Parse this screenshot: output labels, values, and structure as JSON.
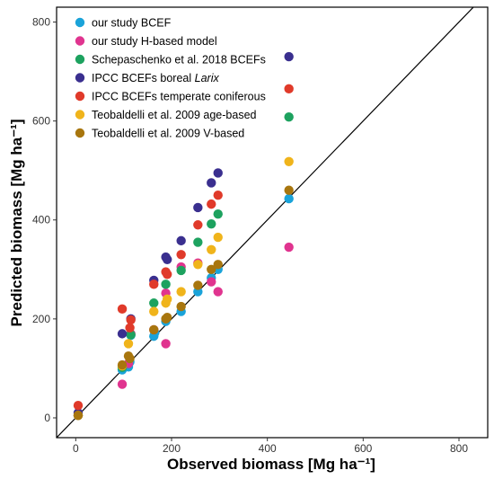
{
  "chart_data": {
    "type": "scatter",
    "xlabel": "Observed biomass [Mg ha⁻¹]",
    "ylabel": "Predicted biomass [Mg ha⁻¹]",
    "xlim": [
      -40,
      860
    ],
    "ylim": [
      -40,
      830
    ],
    "x_ticks": [
      0,
      200,
      400,
      600,
      800
    ],
    "y_ticks": [
      0,
      200,
      400,
      600,
      800
    ],
    "grid": false,
    "reference_line": "1:1",
    "legend_position": "top-left",
    "series": [
      {
        "name": "our study BCEF",
        "color": "#1AA3D9",
        "points": [
          [
            5,
            5
          ],
          [
            97,
            97
          ],
          [
            110,
            103
          ],
          [
            113,
            113
          ],
          [
            115,
            167
          ],
          [
            163,
            165
          ],
          [
            165,
            172
          ],
          [
            188,
            195
          ],
          [
            220,
            215
          ],
          [
            255,
            255
          ],
          [
            283,
            283
          ],
          [
            297,
            300
          ],
          [
            445,
            443
          ]
        ]
      },
      {
        "name": "our study H-based model",
        "color": "#E0348F",
        "points": [
          [
            5,
            5
          ],
          [
            97,
            68
          ],
          [
            110,
            110
          ],
          [
            115,
            170
          ],
          [
            163,
            178
          ],
          [
            188,
            150
          ],
          [
            188,
            252
          ],
          [
            220,
            305
          ],
          [
            255,
            313
          ],
          [
            283,
            275
          ],
          [
            297,
            255
          ],
          [
            445,
            345
          ]
        ]
      },
      {
        "name": "Schepaschenko et al. 2018 BCEFs",
        "color": "#1DA25F",
        "points": [
          [
            5,
            5
          ],
          [
            97,
            102
          ],
          [
            115,
            168
          ],
          [
            163,
            232
          ],
          [
            188,
            270
          ],
          [
            220,
            298
          ],
          [
            255,
            355
          ],
          [
            283,
            392
          ],
          [
            297,
            412
          ],
          [
            445,
            608
          ]
        ]
      },
      {
        "name": "IPCC BCEFs boreal Larix",
        "name_prefix": "IPCC BCEFs boreal ",
        "name_italic": "Larix",
        "color": "#3A2F8F",
        "points": [
          [
            5,
            10
          ],
          [
            97,
            170
          ],
          [
            115,
            200
          ],
          [
            163,
            278
          ],
          [
            188,
            325
          ],
          [
            191,
            320
          ],
          [
            220,
            358
          ],
          [
            255,
            425
          ],
          [
            283,
            475
          ],
          [
            297,
            495
          ],
          [
            445,
            730
          ]
        ]
      },
      {
        "name": "IPCC BCEFs temperate coniferous",
        "color": "#E03A2A",
        "points": [
          [
            5,
            25
          ],
          [
            97,
            220
          ],
          [
            115,
            198
          ],
          [
            113,
            182
          ],
          [
            163,
            270
          ],
          [
            188,
            295
          ],
          [
            191,
            290
          ],
          [
            220,
            330
          ],
          [
            255,
            390
          ],
          [
            283,
            432
          ],
          [
            297,
            450
          ],
          [
            445,
            665
          ]
        ]
      },
      {
        "name": "Teobaldelli et al. 2009 age-based",
        "color": "#F0B41B",
        "points": [
          [
            5,
            5
          ],
          [
            97,
            105
          ],
          [
            110,
            150
          ],
          [
            163,
            215
          ],
          [
            188,
            232
          ],
          [
            191,
            240
          ],
          [
            220,
            255
          ],
          [
            255,
            310
          ],
          [
            283,
            340
          ],
          [
            297,
            365
          ],
          [
            445,
            518
          ]
        ]
      },
      {
        "name": "Teobaldelli et al. 2009 V-based",
        "color": "#A8760E",
        "points": [
          [
            5,
            5
          ],
          [
            97,
            107
          ],
          [
            113,
            120
          ],
          [
            110,
            125
          ],
          [
            163,
            178
          ],
          [
            188,
            200
          ],
          [
            191,
            203
          ],
          [
            220,
            225
          ],
          [
            255,
            268
          ],
          [
            283,
            300
          ],
          [
            297,
            310
          ],
          [
            445,
            460
          ]
        ]
      }
    ]
  }
}
